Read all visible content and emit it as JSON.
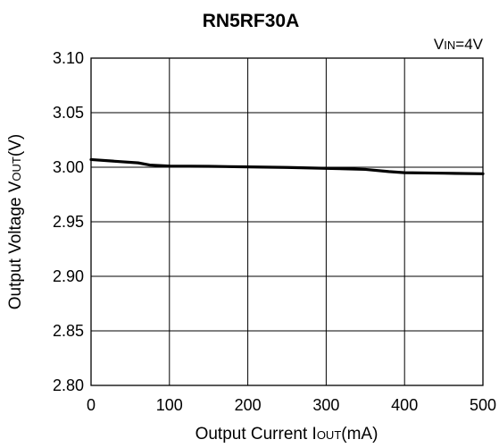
{
  "chart_data": {
    "type": "line",
    "title": "RN5RF30A",
    "annotation": {
      "main": "V",
      "sub": "IN",
      "rest": "=4V"
    },
    "xlabel": {
      "main": "Output Current I",
      "sub": "OUT",
      "rest": "(mA)"
    },
    "ylabel": {
      "main": "Output Voltage V",
      "sub": "OUT",
      "rest": "(V)"
    },
    "xlim": [
      0,
      500
    ],
    "ylim": [
      2.8,
      3.1
    ],
    "x_ticks": [
      "0",
      "100",
      "200",
      "300",
      "400",
      "500"
    ],
    "y_ticks": [
      "3.10",
      "3.05",
      "3.00",
      "2.95",
      "2.90",
      "2.85",
      "2.80"
    ],
    "grid": true,
    "series": [
      {
        "x": [
          0,
          30,
          60,
          75,
          100,
          150,
          200,
          250,
          300,
          350,
          380,
          400,
          450,
          500
        ],
        "y": [
          3.007,
          3.0055,
          3.004,
          3.002,
          3.001,
          3.0008,
          3.0003,
          2.9998,
          2.999,
          2.998,
          2.996,
          2.995,
          2.9945,
          2.994
        ]
      }
    ]
  }
}
